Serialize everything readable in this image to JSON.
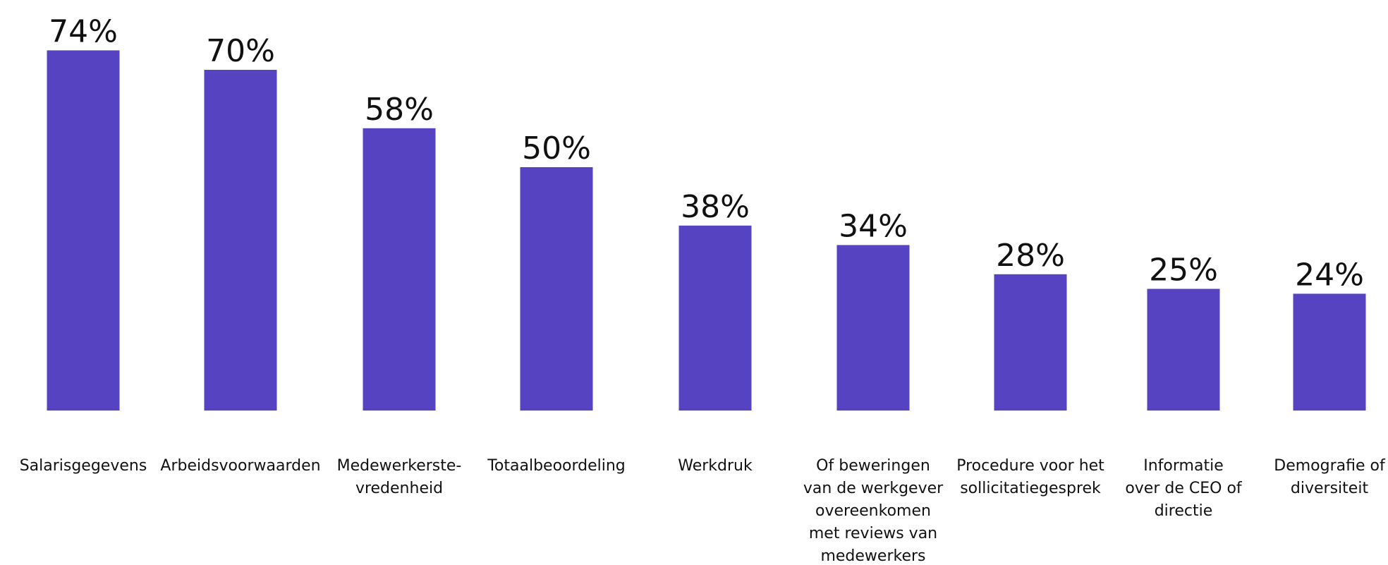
{
  "chart_data": {
    "type": "bar",
    "categories": [
      "Salarisgegevens",
      "Arbeidsvoorwaarden",
      "Medewerkerste-\nvredenheid",
      "Totaalbeoordeling",
      "Werkdruk",
      "Of beweringen\nvan de werkgever\novereenkomen\nmet reviews van\nmedewerkers",
      "Procedure voor het\nsollicitatiegesprek",
      "Informatie\nover de CEO of\ndirectie",
      "Demografie of\ndiversiteit"
    ],
    "values": [
      74,
      70,
      58,
      50,
      38,
      34,
      28,
      25,
      24
    ],
    "value_labels": [
      "74%",
      "70%",
      "58%",
      "50%",
      "38%",
      "34%",
      "28%",
      "25%",
      "24%"
    ],
    "color": "#5643c1"
  }
}
